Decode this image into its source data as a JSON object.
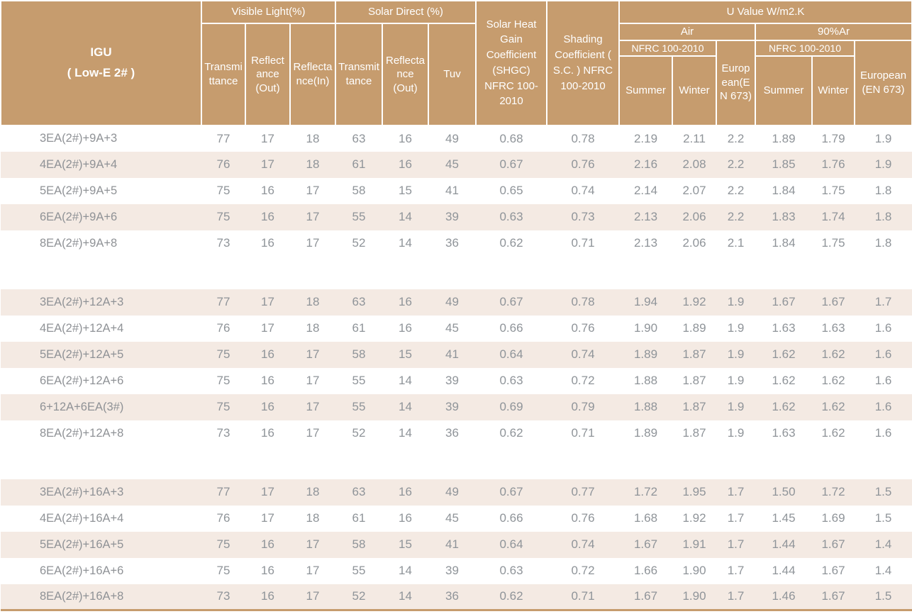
{
  "table": {
    "igu": {
      "title": "IGU",
      "subtitle": "( Low-E 2# )"
    },
    "header": {
      "visible_light": "Visible Light(%)",
      "solar_direct": "Solar Direct (%)",
      "shgc": "Solar Heat Gain Coefficient (SHGC) NFRC 100-2010",
      "sc": "Shading Coefficient ( S.C. ) NFRC 100-2010",
      "u_value": "U Value W/m2.K",
      "air": "Air",
      "ar90": "90%Ar",
      "nfrc_air": "NFRC 100-2010",
      "nfrc_ar": "NFRC 100-2010",
      "european_air": "European(EN 673)",
      "european_ar": "European (EN 673)",
      "sub": {
        "vl_transmittance": "Transmittance",
        "vl_reflectance_out": "Reflectance (Out)",
        "vl_reflectance_in": "Reflectance(In)",
        "sd_transmittance": "Transmittance",
        "sd_reflectance_out": "Reflectance (Out)",
        "tuv": "Tuv",
        "air_summer": "Summer",
        "air_winter": "Winter",
        "ar_summer": "Summer",
        "ar_winter": "Winter"
      }
    },
    "colors": {
      "header_bg": "#C69C6E",
      "stripe_bg": "#F4EAE3",
      "body_text": "#8F9499",
      "header_text": "#FFFFFF",
      "bottom_rule": "#C69C6E"
    },
    "groups": [
      {
        "stripe_first": false,
        "rows": [
          {
            "label": "3EA(2#)+9A+3",
            "values": [
              "77",
              "17",
              "18",
              "63",
              "16",
              "49",
              "0.68",
              "0.78",
              "2.19",
              "2.11",
              "2.2",
              "1.89",
              "1.79",
              "1.9"
            ]
          },
          {
            "label": "4EA(2#)+9A+4",
            "values": [
              "76",
              "17",
              "18",
              "61",
              "16",
              "45",
              "0.67",
              "0.76",
              "2.16",
              "2.08",
              "2.2",
              "1.85",
              "1.76",
              "1.9"
            ]
          },
          {
            "label": "5EA(2#)+9A+5",
            "values": [
              "75",
              "16",
              "17",
              "58",
              "15",
              "41",
              "0.65",
              "0.74",
              "2.14",
              "2.07",
              "2.2",
              "1.84",
              "1.75",
              "1.8"
            ]
          },
          {
            "label": "6EA(2#)+9A+6",
            "values": [
              "75",
              "16",
              "17",
              "55",
              "14",
              "39",
              "0.63",
              "0.73",
              "2.13",
              "2.06",
              "2.2",
              "1.83",
              "1.74",
              "1.8"
            ]
          },
          {
            "label": "8EA(2#)+9A+8",
            "values": [
              "73",
              "16",
              "17",
              "52",
              "14",
              "36",
              "0.62",
              "0.71",
              "2.13",
              "2.06",
              "2.1",
              "1.84",
              "1.75",
              "1.8"
            ]
          }
        ]
      },
      {
        "stripe_first": true,
        "rows": [
          {
            "label": "3EA(2#)+12A+3",
            "values": [
              "77",
              "17",
              "18",
              "63",
              "16",
              "49",
              "0.67",
              "0.78",
              "1.94",
              "1.92",
              "1.9",
              "1.67",
              "1.67",
              "1.7"
            ]
          },
          {
            "label": "4EA(2#)+12A+4",
            "values": [
              "76",
              "17",
              "18",
              "61",
              "16",
              "45",
              "0.66",
              "0.76",
              "1.90",
              "1.89",
              "1.9",
              "1.63",
              "1.63",
              "1.6"
            ]
          },
          {
            "label": "5EA(2#)+12A+5",
            "values": [
              "75",
              "16",
              "17",
              "58",
              "15",
              "41",
              "0.64",
              "0.74",
              "1.89",
              "1.87",
              "1.9",
              "1.62",
              "1.62",
              "1.6"
            ]
          },
          {
            "label": "6EA(2#)+12A+6",
            "values": [
              "75",
              "16",
              "17",
              "55",
              "14",
              "39",
              "0.63",
              "0.72",
              "1.88",
              "1.87",
              "1.9",
              "1.62",
              "1.62",
              "1.6"
            ]
          },
          {
            "label": "6+12A+6EA(3#)",
            "values": [
              "75",
              "16",
              "17",
              "55",
              "14",
              "39",
              "0.69",
              "0.79",
              "1.88",
              "1.87",
              "1.9",
              "1.62",
              "1.62",
              "1.6"
            ]
          },
          {
            "label": "8EA(2#)+12A+8",
            "values": [
              "73",
              "16",
              "17",
              "52",
              "14",
              "36",
              "0.62",
              "0.71",
              "1.89",
              "1.87",
              "1.9",
              "1.63",
              "1.62",
              "1.6"
            ]
          }
        ]
      },
      {
        "stripe_first": true,
        "rows": [
          {
            "label": "3EA(2#)+16A+3",
            "values": [
              "77",
              "17",
              "18",
              "63",
              "16",
              "49",
              "0.67",
              "0.77",
              "1.72",
              "1.95",
              "1.7",
              "1.50",
              "1.72",
              "1.5"
            ]
          },
          {
            "label": "4EA(2#)+16A+4",
            "values": [
              "76",
              "17",
              "18",
              "61",
              "16",
              "45",
              "0.66",
              "0.76",
              "1.68",
              "1.92",
              "1.7",
              "1.45",
              "1.69",
              "1.5"
            ]
          },
          {
            "label": "5EA(2#)+16A+5",
            "values": [
              "75",
              "16",
              "17",
              "58",
              "15",
              "41",
              "0.64",
              "0.74",
              "1.67",
              "1.91",
              "1.7",
              "1.44",
              "1.67",
              "1.4"
            ]
          },
          {
            "label": "6EA(2#)+16A+6",
            "values": [
              "75",
              "16",
              "17",
              "55",
              "14",
              "39",
              "0.63",
              "0.72",
              "1.66",
              "1.90",
              "1.7",
              "1.44",
              "1.67",
              "1.4"
            ]
          },
          {
            "label": "8EA(2#)+16A+8",
            "values": [
              "73",
              "16",
              "17",
              "52",
              "14",
              "36",
              "0.62",
              "0.71",
              "1.67",
              "1.90",
              "1.7",
              "1.46",
              "1.67",
              "1.5"
            ]
          }
        ]
      }
    ]
  }
}
